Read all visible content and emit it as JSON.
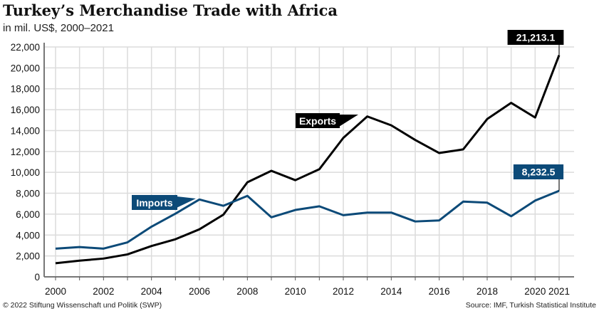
{
  "chart_data": {
    "type": "line",
    "title": "Turkey’s Merchandise Trade with Africa",
    "subtitle": "in mil. US$, 2000–2021",
    "x": [
      2000,
      2001,
      2002,
      2003,
      2004,
      2005,
      2006,
      2007,
      2008,
      2009,
      2010,
      2011,
      2012,
      2013,
      2014,
      2015,
      2016,
      2017,
      2018,
      2019,
      2020,
      2021
    ],
    "x_tick_labels": [
      "2000",
      "2002",
      "2004",
      "2006",
      "2008",
      "2010",
      "2012",
      "2014",
      "2016",
      "2018",
      "2020",
      "2021"
    ],
    "y_tick_labels": [
      "0",
      "2,000",
      "4,000",
      "6,000",
      "8,000",
      "10,000",
      "12,000",
      "14,000",
      "16,000",
      "18,000",
      "20,000",
      "22,000"
    ],
    "ylim": [
      0,
      22000
    ],
    "grid": true,
    "series": [
      {
        "name": "Exports",
        "color": "#000000",
        "values": [
          1300,
          1550,
          1750,
          2150,
          2950,
          3600,
          4550,
          5950,
          9050,
          10150,
          9250,
          10300,
          13300,
          15350,
          14500,
          13100,
          11850,
          12200,
          15100,
          16650,
          15250,
          21213.1
        ],
        "end_label": "21,213.1"
      },
      {
        "name": "Imports",
        "color": "#0c4a78",
        "values": [
          2700,
          2850,
          2700,
          3300,
          4800,
          6050,
          7400,
          6800,
          7750,
          5700,
          6400,
          6750,
          5900,
          6150,
          6150,
          5300,
          5400,
          7200,
          7100,
          5800,
          7300,
          8232.5
        ],
        "end_label": "8,232.5"
      }
    ]
  },
  "footer": {
    "left": "© 2022 Stiftung Wissenschaft und Politik (SWP)",
    "right": "Source: IMF, Turkish Statistical Institute"
  }
}
